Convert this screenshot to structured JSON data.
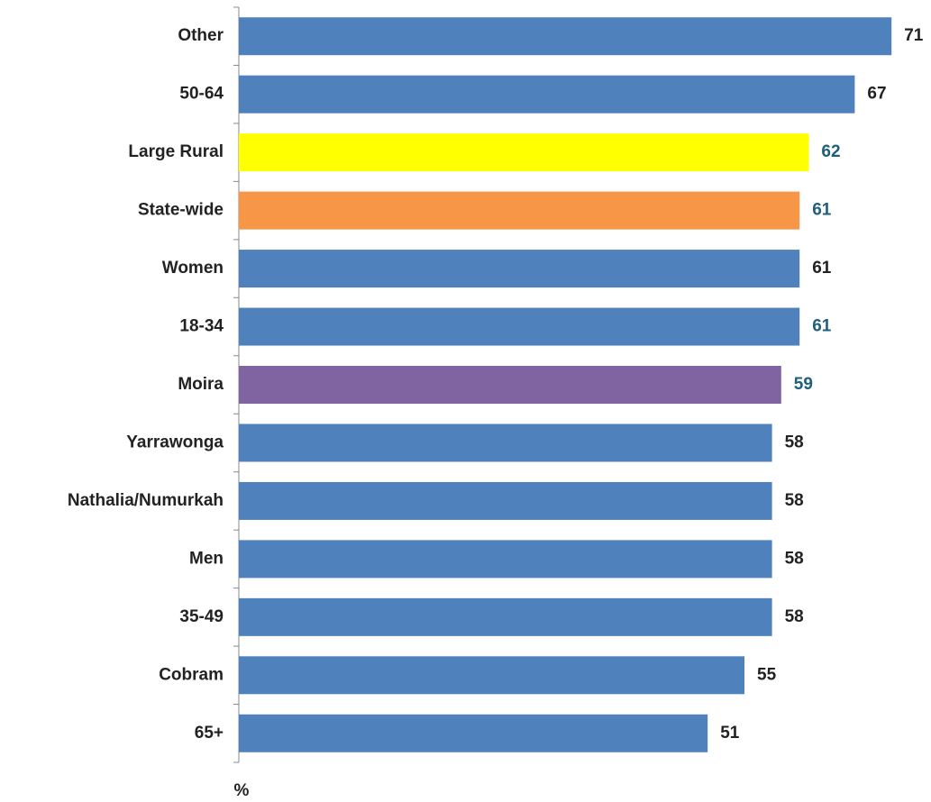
{
  "chart_data": {
    "type": "hbar",
    "categories": [
      "Other",
      "50-64",
      "Large Rural",
      "State-wide",
      "Women",
      "18-34",
      "Moira",
      "Yarrawonga",
      "Nathalia/Numurkah",
      "Men",
      "35-49",
      "Cobram",
      "65+"
    ],
    "values": [
      71,
      67,
      62,
      61,
      61,
      61,
      59,
      58,
      58,
      58,
      58,
      55,
      51
    ],
    "colors": [
      "#4f81bd",
      "#4f81bd",
      "#ffff00",
      "#f79646",
      "#4f81bd",
      "#4f81bd",
      "#8064a2",
      "#4f81bd",
      "#4f81bd",
      "#4f81bd",
      "#4f81bd",
      "#4f81bd",
      "#4f81bd"
    ],
    "value_label_colors": [
      "#222222",
      "#222222",
      "#1f5f7a",
      "#1f5f7a",
      "#222222",
      "#1f5f7a",
      "#1f5f7a",
      "#222222",
      "#222222",
      "#222222",
      "#222222",
      "#222222",
      "#222222"
    ],
    "xlim": [
      0,
      75
    ],
    "x_label": "%"
  }
}
